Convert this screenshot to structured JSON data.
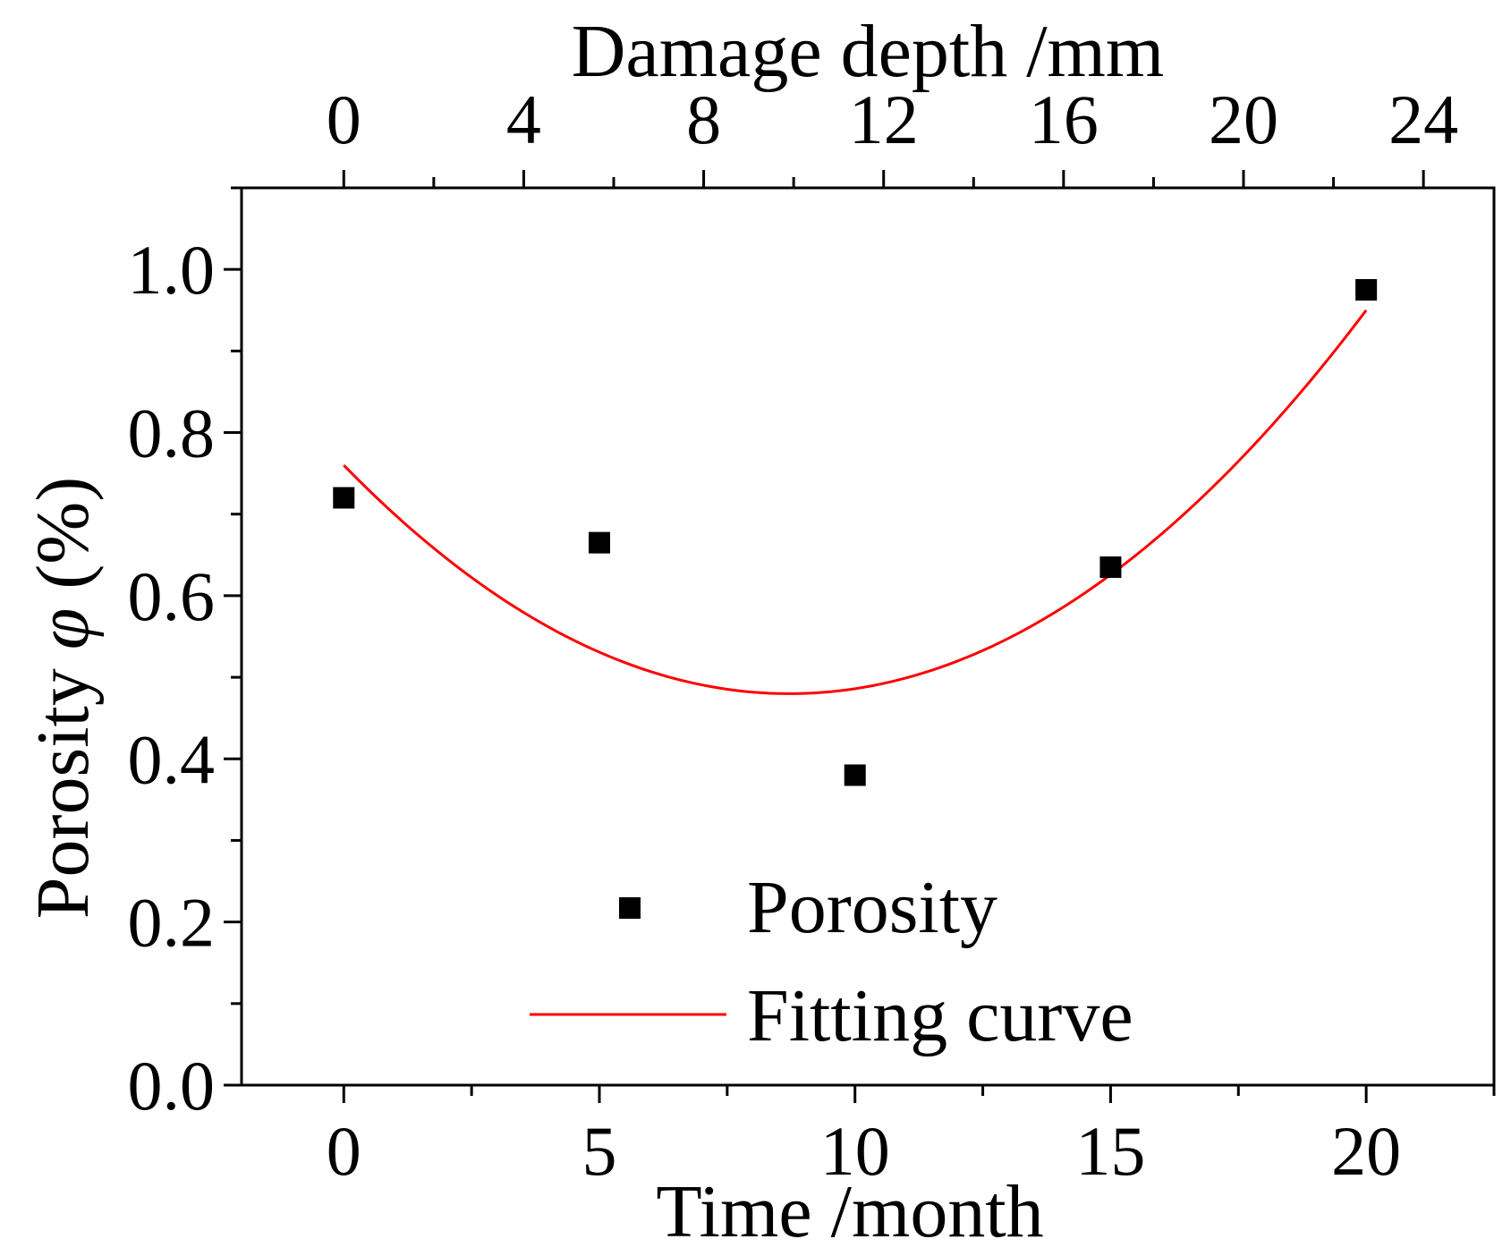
{
  "colors": {
    "background": "#ffffff",
    "axis": "#000000",
    "marker": "#000000",
    "fit_line": "#ff0000"
  },
  "chart_data": {
    "type": "scatter",
    "xlabel": "Time /month",
    "x2label": "Damage depth /mm",
    "ylabel_prefix": "Porosity ",
    "ylabel_symbol": "φ",
    "ylabel_suffix": " (%)",
    "xlim": [
      -2,
      22.5
    ],
    "ylim": [
      0,
      1.1
    ],
    "x_ticks": [
      0,
      5,
      10,
      15,
      20
    ],
    "x_tick_labels": [
      "0",
      "5",
      "10",
      "15",
      "20"
    ],
    "x_minor_ticks": [
      -2.5,
      2.5,
      7.5,
      12.5,
      17.5,
      22.5
    ],
    "y_ticks": [
      0.0,
      0.2,
      0.4,
      0.6,
      0.8,
      1.0
    ],
    "y_tick_labels": [
      "0.0",
      "0.2",
      "0.4",
      "0.6",
      "0.8",
      "1.0"
    ],
    "y_minor_ticks": [
      0.1,
      0.3,
      0.5,
      0.7,
      0.9,
      1.1
    ],
    "x2_ticks": [
      0,
      4,
      8,
      12,
      16,
      20,
      24
    ],
    "x2_tick_labels": [
      "0",
      "4",
      "8",
      "12",
      "16",
      "20",
      "24"
    ],
    "x2_minor_ticks": [
      2,
      6,
      10,
      14,
      18,
      22
    ],
    "x2_mapping": {
      "x_at_x2_0": 0,
      "x_per_x2_unit": 0.88
    },
    "series": [
      {
        "name": "Porosity",
        "kind": "scatter",
        "marker": "square",
        "x": [
          0,
          5,
          10,
          15,
          20
        ],
        "y": [
          0.72,
          0.665,
          0.38,
          0.635,
          0.975
        ]
      },
      {
        "name": "Fitting curve",
        "kind": "line",
        "model": "quadratic",
        "x_range": [
          0,
          20
        ],
        "coefficients": {
          "a": 0.00369,
          "b": -0.0643,
          "c": 0.76
        }
      }
    ],
    "legend": {
      "position": "bottom-center",
      "entries": [
        "Porosity",
        "Fitting curve"
      ]
    },
    "grid": false
  }
}
